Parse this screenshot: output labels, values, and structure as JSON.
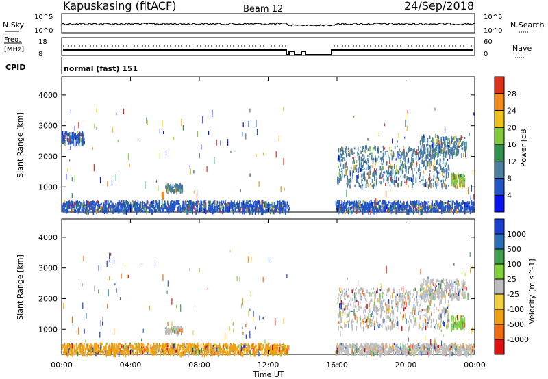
{
  "header": {
    "station": "Kapuskasing (fitACF)",
    "beam": "Beam 12",
    "date": "24/Sep/2018"
  },
  "top_panel": {
    "left_label": "N.Sky",
    "right_label": "N.Search",
    "left_ticks": [
      "10^5",
      "10^0"
    ],
    "right_ticks": [
      "10^5",
      "10^0"
    ]
  },
  "freq_panel": {
    "left_label_1": "Freq.",
    "left_label_2": "[MHz]",
    "right_label": "Nave",
    "left_ticks": [
      "18",
      "8"
    ],
    "right_ticks": [
      "60",
      "0"
    ]
  },
  "cpid": {
    "label": "CPID",
    "value": "normal (fast) 151"
  },
  "colors": {
    "power_scale": [
      "#0a14f0",
      "#2255c8",
      "#4a7fa0",
      "#2f8f4f",
      "#7fc93a",
      "#f0c01a",
      "#f08a1a",
      "#e0301a"
    ],
    "velocity_scale": [
      "#e01010",
      "#f06a10",
      "#f0a010",
      "#f0d040",
      "#bdbdbd",
      "#7fd03a",
      "#3f9f4f",
      "#2a6fb8",
      "#1a40d0"
    ]
  },
  "chart_data": [
    {
      "type": "heatmap",
      "title": "",
      "xlabel": "Time UT",
      "ylabel": "Slant Range [km]",
      "x_ticks": [
        "00:00",
        "04:00",
        "08:00",
        "12:00",
        "16:00",
        "20:00",
        "00:00"
      ],
      "y_ticks": [
        "1000",
        "2000",
        "3000",
        "4000"
      ],
      "colorbar_label": "Power [dB]",
      "colorbar_ticks": [
        "4",
        "8",
        "12",
        "16",
        "20",
        "24",
        "28"
      ],
      "xlim": [
        0,
        24
      ],
      "ylim": [
        180,
        4600
      ],
      "features": [
        {
          "t_start": 0.0,
          "t_end": 13.2,
          "range_start": 180,
          "range_end": 500,
          "value": 6
        },
        {
          "t_start": 15.9,
          "t_end": 24.0,
          "range_start": 180,
          "range_end": 500,
          "value": 7
        },
        {
          "t_start": 6.0,
          "t_end": 7.0,
          "range_start": 850,
          "range_end": 1050,
          "value": 9
        },
        {
          "t_start": 5.8,
          "t_end": 5.9,
          "range_start": 650,
          "range_end": 800,
          "value": 26
        },
        {
          "t_start": 16.0,
          "t_end": 22.5,
          "range_start": 1000,
          "range_end": 2300,
          "value": 9
        },
        {
          "t_start": 20.8,
          "t_end": 23.5,
          "range_start": 2000,
          "range_end": 2600,
          "value": 12
        },
        {
          "t_start": 22.6,
          "t_end": 23.4,
          "range_start": 1000,
          "range_end": 1400,
          "value": 18
        },
        {
          "t_start": 0.0,
          "t_end": 1.3,
          "range_start": 2400,
          "range_end": 2750,
          "value": 8
        }
      ]
    },
    {
      "type": "heatmap",
      "title": "",
      "xlabel": "Time UT",
      "ylabel": "Slant Range [km]",
      "x_ticks": [
        "00:00",
        "04:00",
        "08:00",
        "12:00",
        "16:00",
        "20:00",
        "00:00"
      ],
      "y_ticks": [
        "1000",
        "2000",
        "3000",
        "4000"
      ],
      "colorbar_label": "Velocity [m s^-1]",
      "colorbar_ticks": [
        "-1000",
        "-500",
        "-100",
        "-25",
        "25",
        "100",
        "500",
        "1000"
      ],
      "xlim": [
        0,
        24
      ],
      "ylim": [
        180,
        4600
      ],
      "features": [
        {
          "t_start": 0.0,
          "t_end": 13.2,
          "range_start": 180,
          "range_end": 500,
          "value": -100
        },
        {
          "t_start": 15.9,
          "t_end": 24.0,
          "range_start": 180,
          "range_end": 500,
          "value": -25
        },
        {
          "t_start": 6.0,
          "t_end": 7.0,
          "range_start": 850,
          "range_end": 1050,
          "value": 0
        },
        {
          "t_start": 16.0,
          "t_end": 22.5,
          "range_start": 1000,
          "range_end": 2300,
          "value": 0
        },
        {
          "t_start": 20.8,
          "t_end": 23.5,
          "range_start": 2000,
          "range_end": 2600,
          "value": 0
        },
        {
          "t_start": 22.6,
          "t_end": 23.4,
          "range_start": 1000,
          "range_end": 1400,
          "value": 100
        }
      ]
    }
  ]
}
